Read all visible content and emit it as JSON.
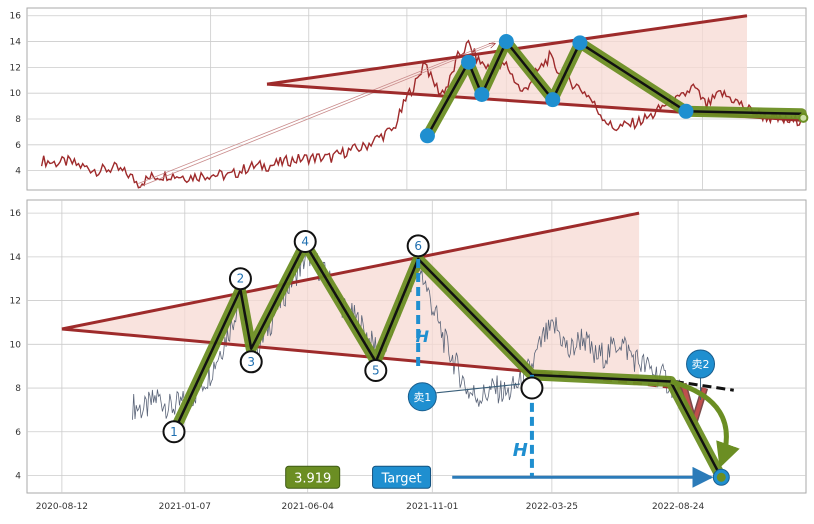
{
  "chart_data": {
    "type": "line",
    "colors": {
      "price": "#9e2a2b",
      "price_candles": "#5a6478",
      "trend_line": "#9e2b2b",
      "wedge_fill": "#f7d9d3",
      "zigzag_outer": "#6b8e23",
      "zigzag_inner": "#111111",
      "marker": "#1f8fd0",
      "target_arrow": "#2b7bb9",
      "grid": "#cccccc"
    },
    "x_tick_labels": [
      "2020-08-12",
      "2021-01-07",
      "2021-06-04",
      "2021-11-01",
      "2022-03-25",
      "2022-08-24"
    ],
    "x_tick_dates": [
      "2020-08-12",
      "2021-01-07",
      "2021-06-04",
      "2021-11-01",
      "2022-03-25",
      "2022-08-24"
    ],
    "panels": [
      {
        "id": "top",
        "ylim": [
          2.5,
          16.6
        ],
        "xlim": [
          "2019-11-09",
          "2023-01-27"
        ],
        "y_ticks": [
          4,
          6,
          8,
          10,
          12,
          14,
          16
        ],
        "show_x_tick_labels": false,
        "price_series": [
          [
            "2019-12-01",
            4.8
          ],
          [
            "2019-12-20",
            4.6
          ],
          [
            "2020-01-10",
            4.7
          ],
          [
            "2020-02-01",
            4.3
          ],
          [
            "2020-02-25",
            4.0
          ],
          [
            "2020-03-20",
            4.2
          ],
          [
            "2020-04-10",
            3.7
          ],
          [
            "2020-04-25",
            3.0
          ],
          [
            "2020-05-15",
            3.5
          ],
          [
            "2020-06-10",
            3.7
          ],
          [
            "2020-07-10",
            3.5
          ],
          [
            "2020-08-10",
            3.7
          ],
          [
            "2020-09-10",
            3.6
          ],
          [
            "2020-10-10",
            4.3
          ],
          [
            "2020-11-10",
            4.4
          ],
          [
            "2020-12-10",
            4.8
          ],
          [
            "2021-01-10",
            5.0
          ],
          [
            "2021-02-10",
            5.0
          ],
          [
            "2021-03-05",
            5.5
          ],
          [
            "2021-03-30",
            5.8
          ],
          [
            "2021-04-20",
            6.5
          ],
          [
            "2021-05-15",
            7.2
          ],
          [
            "2021-06-05",
            9.8
          ],
          [
            "2021-06-20",
            11.0
          ],
          [
            "2021-07-01",
            12.6
          ],
          [
            "2021-07-10",
            11.2
          ],
          [
            "2021-07-25",
            10.0
          ],
          [
            "2021-08-05",
            10.6
          ],
          [
            "2021-08-20",
            12.8
          ],
          [
            "2021-09-05",
            13.8
          ],
          [
            "2021-09-20",
            12.5
          ],
          [
            "2021-10-10",
            11.8
          ],
          [
            "2021-11-01",
            12.2
          ],
          [
            "2021-11-25",
            10.0
          ],
          [
            "2021-12-15",
            11.5
          ],
          [
            "2022-01-05",
            12.8
          ],
          [
            "2022-01-25",
            11.2
          ],
          [
            "2022-02-15",
            10.6
          ],
          [
            "2022-03-05",
            9.8
          ],
          [
            "2022-03-20",
            8.6
          ],
          [
            "2022-04-10",
            7.3
          ],
          [
            "2022-05-01",
            7.5
          ],
          [
            "2022-05-20",
            7.8
          ],
          [
            "2022-06-10",
            8.3
          ],
          [
            "2022-06-30",
            9.2
          ],
          [
            "2022-07-20",
            9.5
          ],
          [
            "2022-08-10",
            10.5
          ],
          [
            "2022-08-30",
            9.0
          ],
          [
            "2022-09-20",
            10.0
          ],
          [
            "2022-10-10",
            9.5
          ],
          [
            "2022-10-30",
            8.8
          ],
          [
            "2022-11-20",
            8.3
          ],
          [
            "2022-12-10",
            8.0
          ],
          [
            "2023-01-05",
            7.8
          ],
          [
            "2023-01-20",
            8.0
          ]
        ],
        "wedge_upper": [
          [
            "2020-11-05",
            10.7
          ],
          [
            "2022-10-30",
            16.0
          ]
        ],
        "wedge_lower": [
          [
            "2020-11-05",
            10.7
          ],
          [
            "2022-10-30",
            8.0
          ]
        ],
        "trend_upper": [
          [
            "2020-11-05",
            10.7
          ],
          [
            "2022-10-30",
            16.0
          ]
        ],
        "trend_lower": [
          [
            "2020-11-05",
            10.7
          ],
          [
            "2023-01-20",
            7.9
          ]
        ],
        "trend_lower_dashed": [
          [
            "2022-11-10",
            8.2
          ],
          [
            "2023-01-20",
            7.9
          ]
        ],
        "arrow_channel": [
          [
            "2020-04-25",
            3.0
          ],
          [
            "2021-10-15",
            14.0
          ]
        ],
        "zigzag": [
          [
            "2021-07-05",
            6.7
          ],
          [
            "2021-09-05",
            12.4
          ],
          [
            "2021-09-25",
            9.9
          ],
          [
            "2021-11-01",
            14.0
          ],
          [
            "2022-01-10",
            9.5
          ],
          [
            "2022-02-20",
            13.9
          ],
          [
            "2022-07-30",
            8.6
          ],
          [
            "2023-01-20",
            8.4
          ]
        ],
        "markers": [
          [
            "2021-07-05",
            6.7
          ],
          [
            "2021-09-05",
            12.4
          ],
          [
            "2021-09-25",
            9.9
          ],
          [
            "2021-11-01",
            14.0
          ],
          [
            "2022-01-10",
            9.5
          ],
          [
            "2022-02-20",
            13.9
          ],
          [
            "2022-07-30",
            8.6
          ]
        ]
      },
      {
        "id": "bottom",
        "ylim": [
          3.2,
          16.6
        ],
        "xlim": [
          "2020-07-01",
          "2023-01-25"
        ],
        "y_ticks": [
          4,
          6,
          8,
          10,
          12,
          14,
          16
        ],
        "show_x_tick_labels": true,
        "price_series": [
          [
            "2020-11-05",
            7.2
          ],
          [
            "2020-11-20",
            7.0
          ],
          [
            "2020-12-05",
            7.6
          ],
          [
            "2020-12-20",
            7.1
          ],
          [
            "2021-01-05",
            7.3
          ],
          [
            "2021-01-20",
            7.8
          ],
          [
            "2021-02-05",
            8.6
          ],
          [
            "2021-02-20",
            9.8
          ],
          [
            "2021-03-05",
            11.0
          ],
          [
            "2021-03-15",
            12.3
          ],
          [
            "2021-03-25",
            10.5
          ],
          [
            "2021-04-05",
            9.8
          ],
          [
            "2021-04-20",
            11.0
          ],
          [
            "2021-05-05",
            12.2
          ],
          [
            "2021-05-20",
            13.2
          ],
          [
            "2021-06-05",
            14.2
          ],
          [
            "2021-06-20",
            13.4
          ],
          [
            "2021-07-05",
            12.6
          ],
          [
            "2021-07-20",
            11.5
          ],
          [
            "2021-08-05",
            11.0
          ],
          [
            "2021-08-20",
            10.0
          ],
          [
            "2021-09-05",
            9.8
          ],
          [
            "2021-09-20",
            11.5
          ],
          [
            "2021-10-05",
            12.8
          ],
          [
            "2021-10-15",
            13.8
          ],
          [
            "2021-10-30",
            12.0
          ],
          [
            "2021-11-15",
            10.2
          ],
          [
            "2021-11-30",
            9.0
          ],
          [
            "2021-12-15",
            7.8
          ],
          [
            "2021-12-30",
            7.6
          ],
          [
            "2022-01-15",
            8.0
          ],
          [
            "2022-01-30",
            7.7
          ],
          [
            "2022-02-15",
            8.3
          ],
          [
            "2022-03-01",
            9.0
          ],
          [
            "2022-03-15",
            10.3
          ],
          [
            "2022-03-30",
            10.8
          ],
          [
            "2022-04-15",
            9.6
          ],
          [
            "2022-05-01",
            10.4
          ],
          [
            "2022-05-15",
            9.4
          ],
          [
            "2022-06-01",
            9.6
          ],
          [
            "2022-06-15",
            10.2
          ],
          [
            "2022-07-01",
            9.4
          ],
          [
            "2022-07-15",
            9.0
          ],
          [
            "2022-08-01",
            8.6
          ],
          [
            "2022-08-15",
            8.2
          ],
          [
            "2022-08-30",
            7.7
          ]
        ],
        "wedge_upper": [
          [
            "2020-08-12",
            10.7
          ],
          [
            "2022-07-08",
            16.0
          ]
        ],
        "wedge_lower": [
          [
            "2020-08-12",
            10.7
          ],
          [
            "2022-07-08",
            8.3
          ]
        ],
        "trend_upper": [
          [
            "2020-08-12",
            10.7
          ],
          [
            "2022-07-08",
            16.0
          ]
        ],
        "trend_lower": [
          [
            "2020-08-12",
            10.7
          ],
          [
            "2022-03-15",
            8.7
          ]
        ],
        "trend_lower_dashed": [
          [
            "2022-03-15",
            8.7
          ],
          [
            "2022-09-15",
            7.9
          ]
        ],
        "trend_black_dashed": [
          [
            "2022-08-20",
            8.3
          ],
          [
            "2022-10-30",
            7.9
          ]
        ],
        "zigzag": [
          [
            "2020-12-25",
            6.0
          ],
          [
            "2021-03-15",
            12.5
          ],
          [
            "2021-03-28",
            9.8
          ],
          [
            "2021-06-01",
            14.6
          ],
          [
            "2021-08-25",
            9.2
          ],
          [
            "2021-10-15",
            13.9
          ],
          [
            "2022-03-01",
            8.6
          ],
          [
            "2022-08-15",
            8.3
          ],
          [
            "2022-10-15",
            3.9
          ]
        ],
        "pattern_points": [
          {
            "label": "1",
            "date": "2020-12-25",
            "value": 6.0
          },
          {
            "label": "2",
            "date": "2021-03-15",
            "value": 13.0
          },
          {
            "label": "3",
            "date": "2021-03-28",
            "value": 9.2
          },
          {
            "label": "4",
            "date": "2021-06-01",
            "value": 14.7
          },
          {
            "label": "5",
            "date": "2021-08-25",
            "value": 8.8
          },
          {
            "label": "6",
            "date": "2021-10-15",
            "value": 14.5
          },
          {
            "label": "",
            "date": "2022-03-01",
            "value": 8.0
          }
        ],
        "h_bars": [
          {
            "date": "2021-10-15",
            "top": 13.9,
            "bottom": 8.8
          },
          {
            "date": "2022-03-01",
            "top": 8.6,
            "bottom": 3.9
          }
        ],
        "h_labels": [
          {
            "text": "H",
            "date": "2021-10-20",
            "value": 10.1
          },
          {
            "text": "H",
            "date": "2022-02-15",
            "value": 4.9
          }
        ],
        "sell_markers": [
          {
            "text": "卖1",
            "date": "2021-10-20",
            "value": 7.6
          },
          {
            "text": "卖2",
            "date": "2022-09-20",
            "value": 9.1
          }
        ],
        "v_shape": [
          [
            "2022-08-30",
            8.2
          ],
          [
            "2022-09-12",
            6.4
          ],
          [
            "2022-09-25",
            8.0
          ]
        ],
        "target_value_label": "3.919",
        "target_label": "Target",
        "target_level": 3.919,
        "target_end_date": "2022-10-15",
        "target_value_box_date": "2021-06-10",
        "target_box_date": "2021-09-25",
        "target_arrow_start_date": "2021-11-25"
      }
    ]
  }
}
